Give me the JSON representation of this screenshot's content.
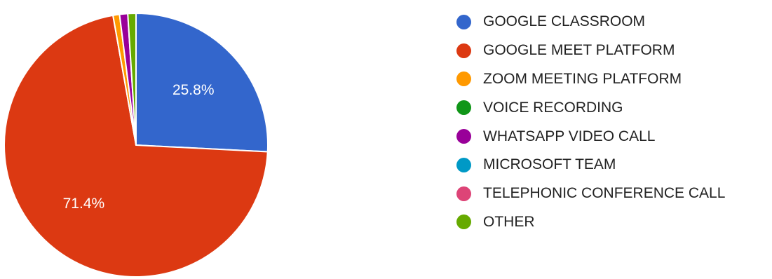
{
  "chart_data": {
    "type": "pie",
    "categories": [
      "GOOGLE CLASSROOM",
      "GOOGLE MEET PLATFORM",
      "ZOOM MEETING PLATFORM",
      "VOICE RECORDING",
      "WHATSAPP VIDEO CALL",
      "MICROSOFT TEAM",
      "TELEPHONIC CONFERENCE CALL",
      "OTHER"
    ],
    "values": [
      25.8,
      71.4,
      0.8,
      0.0,
      1.0,
      0.0,
      0.0,
      1.0
    ],
    "value_labels": [
      "25.8%",
      "71.4%",
      "",
      "",
      "",
      "",
      "",
      ""
    ],
    "colors": [
      "#3366cc",
      "#dc3912",
      "#ff9900",
      "#109618",
      "#990099",
      "#0099c6",
      "#dd4477",
      "#66aa00"
    ],
    "start_angle_deg": 90,
    "direction": "clockwise",
    "legend_position": "right",
    "slice_border_color": "#ffffff",
    "label_color": "#ffffff"
  }
}
